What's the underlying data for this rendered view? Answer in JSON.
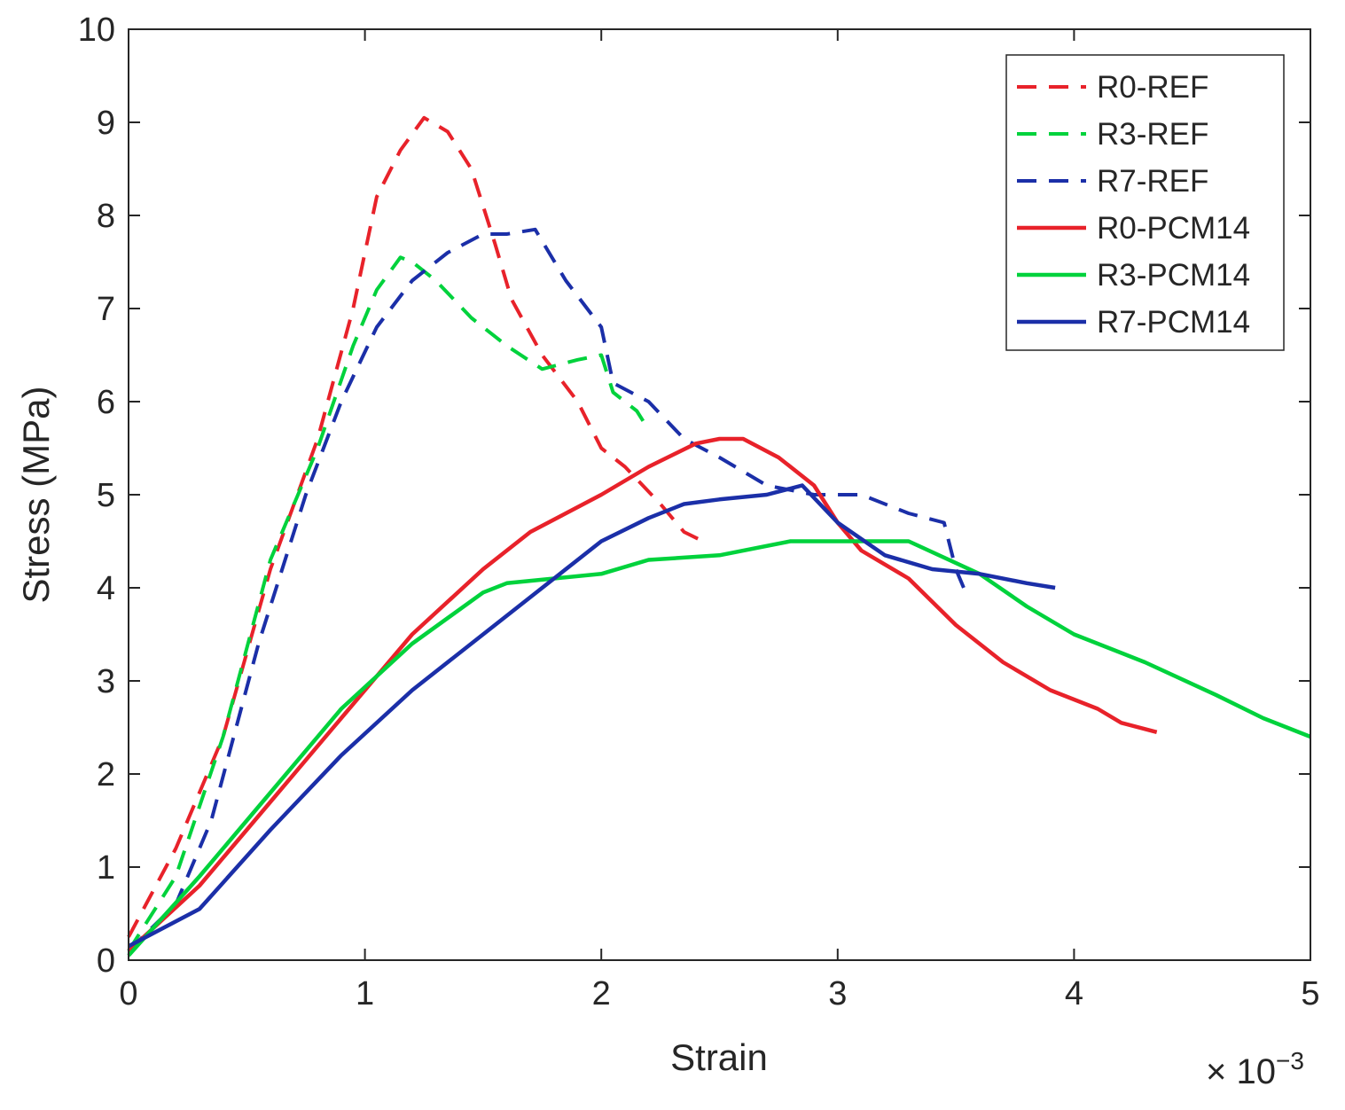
{
  "chart_data": {
    "type": "line",
    "title": "",
    "xlabel": "Strain",
    "ylabel": "Stress (MPa)",
    "x_multiplier_label": "× 10",
    "x_multiplier_exponent": "−3",
    "xlim": [
      0,
      5
    ],
    "ylim": [
      0,
      10
    ],
    "xticks": [
      0,
      1,
      2,
      3,
      4,
      5
    ],
    "xtick_labels": [
      "0",
      "1",
      "2",
      "3",
      "4",
      "5"
    ],
    "yticks": [
      0,
      1,
      2,
      3,
      4,
      5,
      6,
      7,
      8,
      9,
      10
    ],
    "ytick_labels": [
      "0",
      "1",
      "2",
      "3",
      "4",
      "5",
      "6",
      "7",
      "8",
      "9",
      "10"
    ],
    "grid": false,
    "legend_position": "top-right",
    "series": [
      {
        "name": "R0-REF",
        "color": "#e8222a",
        "style": "dashed",
        "x": [
          0,
          0.2,
          0.4,
          0.6,
          0.8,
          0.95,
          1.05,
          1.15,
          1.25,
          1.35,
          1.45,
          1.55,
          1.62,
          1.75,
          1.9,
          2.0,
          2.1,
          2.25,
          2.35,
          2.43
        ],
        "y": [
          0.25,
          1.2,
          2.4,
          4.2,
          5.6,
          7.0,
          8.2,
          8.7,
          9.05,
          8.9,
          8.5,
          7.7,
          7.1,
          6.5,
          6.0,
          5.5,
          5.3,
          4.9,
          4.6,
          4.5
        ]
      },
      {
        "name": "R3-REF",
        "color": "#00d23c",
        "style": "dashed",
        "x": [
          0,
          0.2,
          0.4,
          0.6,
          0.8,
          0.95,
          1.05,
          1.15,
          1.2,
          1.3,
          1.45,
          1.6,
          1.75,
          1.9,
          2.0,
          2.05,
          2.15,
          2.2
        ],
        "y": [
          0.1,
          0.9,
          2.4,
          4.3,
          5.5,
          6.6,
          7.2,
          7.55,
          7.5,
          7.3,
          6.9,
          6.6,
          6.35,
          6.45,
          6.5,
          6.1,
          5.9,
          5.7
        ]
      },
      {
        "name": "R7-REF",
        "color": "#1b2fa8",
        "style": "dashed",
        "x": [
          0,
          0.2,
          0.35,
          0.55,
          0.75,
          0.9,
          1.05,
          1.2,
          1.35,
          1.5,
          1.6,
          1.72,
          1.85,
          2.0,
          2.05,
          2.2,
          2.35,
          2.5,
          2.7,
          2.9,
          3.1,
          3.3,
          3.45,
          3.5,
          3.55
        ],
        "y": [
          0.1,
          0.6,
          1.5,
          3.4,
          5.0,
          6.0,
          6.8,
          7.3,
          7.6,
          7.8,
          7.8,
          7.85,
          7.3,
          6.8,
          6.2,
          6.0,
          5.6,
          5.4,
          5.1,
          5.0,
          5.0,
          4.8,
          4.7,
          4.2,
          3.9
        ]
      },
      {
        "name": "R0-PCM14",
        "color": "#e8222a",
        "style": "solid",
        "x": [
          0,
          0.3,
          0.6,
          0.9,
          1.2,
          1.5,
          1.7,
          2.0,
          2.2,
          2.4,
          2.5,
          2.6,
          2.75,
          2.9,
          3.0,
          3.1,
          3.3,
          3.5,
          3.7,
          3.9,
          4.1,
          4.2,
          4.35
        ],
        "y": [
          0.1,
          0.8,
          1.7,
          2.6,
          3.5,
          4.2,
          4.6,
          5.0,
          5.3,
          5.55,
          5.6,
          5.6,
          5.4,
          5.1,
          4.7,
          4.4,
          4.1,
          3.6,
          3.2,
          2.9,
          2.7,
          2.55,
          2.45
        ]
      },
      {
        "name": "R3-PCM14",
        "color": "#00d23c",
        "style": "solid",
        "x": [
          0,
          0.3,
          0.6,
          0.9,
          1.2,
          1.5,
          1.6,
          1.8,
          2.0,
          2.2,
          2.5,
          2.8,
          3.0,
          3.3,
          3.6,
          3.8,
          4.0,
          4.3,
          4.6,
          4.8,
          5.0
        ],
        "y": [
          0.05,
          0.9,
          1.8,
          2.7,
          3.4,
          3.95,
          4.05,
          4.1,
          4.15,
          4.3,
          4.35,
          4.5,
          4.5,
          4.5,
          4.15,
          3.8,
          3.5,
          3.2,
          2.85,
          2.6,
          2.4
        ]
      },
      {
        "name": "R7-PCM14",
        "color": "#1b2fa8",
        "style": "solid",
        "x": [
          0,
          0.3,
          0.6,
          0.9,
          1.2,
          1.5,
          1.8,
          2.0,
          2.2,
          2.35,
          2.5,
          2.7,
          2.85,
          3.0,
          3.2,
          3.4,
          3.6,
          3.8,
          3.92
        ],
        "y": [
          0.15,
          0.55,
          1.4,
          2.2,
          2.9,
          3.5,
          4.1,
          4.5,
          4.75,
          4.9,
          4.95,
          5.0,
          5.1,
          4.7,
          4.35,
          4.2,
          4.15,
          4.05,
          4.0
        ]
      }
    ]
  }
}
